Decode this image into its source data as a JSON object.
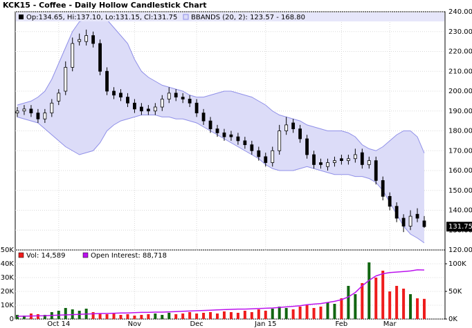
{
  "chart_data": [
    {
      "type": "candlestick",
      "title": "KCK15 - Coffee - Daily Hollow Candlestick Chart",
      "legend": [
        "Op:134.65, Hi:137.10, Lo:131.15, Cl:131.75",
        "BBANDS (20, 2): 123.57 - 168.80"
      ],
      "categories": [
        null,
        null,
        null,
        null,
        null,
        null,
        "Oct 14",
        null,
        null,
        null,
        null,
        null,
        null,
        null,
        null,
        null,
        null,
        "Nov",
        null,
        null,
        null,
        null,
        null,
        null,
        null,
        null,
        "Dec",
        null,
        null,
        null,
        null,
        null,
        null,
        null,
        null,
        null,
        "Jan 15",
        null,
        null,
        null,
        null,
        null,
        null,
        null,
        null,
        null,
        null,
        "Feb",
        null,
        null,
        null,
        null,
        null,
        null,
        "Mar",
        null,
        null,
        null,
        null,
        null
      ],
      "open": [
        189,
        190,
        191,
        189,
        186,
        189,
        195,
        200,
        212,
        225,
        225,
        228,
        224,
        210,
        200,
        199,
        197,
        194,
        192,
        191,
        190,
        192,
        196,
        199,
        197,
        196,
        194,
        189,
        185,
        181,
        179,
        178,
        177,
        175,
        173,
        170,
        167,
        164,
        170,
        180,
        184,
        181,
        176,
        168,
        164,
        162,
        164,
        166,
        165,
        166,
        169,
        163,
        165,
        155,
        147,
        142,
        136,
        132,
        138,
        134.65
      ],
      "high": [
        192,
        193,
        193,
        191,
        191,
        196,
        201,
        215,
        227,
        229,
        231,
        230,
        226,
        212,
        202,
        201,
        199,
        196,
        194,
        193,
        194,
        198,
        202,
        201,
        199,
        198,
        196,
        191,
        187,
        183,
        181,
        180,
        179,
        177,
        175,
        172,
        169,
        172,
        183,
        187,
        186,
        183,
        178,
        170,
        166,
        166,
        167,
        168,
        168,
        171,
        171,
        167,
        167,
        157,
        149,
        144,
        138,
        140,
        141,
        137.1
      ],
      "low": [
        187,
        188,
        187,
        184,
        184,
        187,
        193,
        198,
        210,
        223,
        223,
        222,
        208,
        198,
        196,
        195,
        192,
        189,
        188,
        188,
        188,
        190,
        194,
        195,
        194,
        192,
        187,
        183,
        179,
        177,
        175,
        175,
        173,
        171,
        168,
        165,
        162,
        162,
        168,
        178,
        179,
        174,
        166,
        161,
        161,
        160,
        162,
        163,
        163,
        164,
        161,
        161,
        153,
        145,
        140,
        134,
        129,
        130,
        134,
        131.15
      ],
      "close": [
        190,
        191,
        189,
        186,
        189,
        194,
        199,
        212,
        224,
        226,
        228,
        224,
        210,
        200,
        198,
        197,
        194,
        191,
        190,
        190,
        192,
        196,
        199,
        197,
        196,
        194,
        189,
        185,
        181,
        179,
        177,
        177,
        175,
        173,
        170,
        167,
        164,
        170,
        180,
        183,
        181,
        176,
        168,
        163,
        163,
        164,
        165,
        165,
        166,
        168,
        163,
        165,
        155,
        147,
        142,
        136,
        132,
        137,
        136,
        131.75
      ],
      "bands": {
        "color": "#8f8fe8",
        "fill": "#dcdcf8",
        "upper": [
          193,
          194,
          195,
          197,
          200,
          206,
          214,
          222,
          230,
          235,
          236,
          237,
          237,
          236,
          232,
          228,
          224,
          216,
          210,
          207,
          205,
          203,
          202,
          201,
          200,
          198,
          197,
          197,
          198,
          199,
          200,
          200,
          199,
          198,
          197,
          195,
          193,
          190,
          188,
          187,
          186,
          185,
          183,
          182,
          181,
          180,
          180,
          180,
          179,
          177,
          173,
          171,
          170,
          172,
          175,
          178,
          180,
          180,
          177,
          168.8
        ],
        "lower": [
          187,
          186,
          185,
          184,
          181,
          178,
          175,
          172,
          170,
          168,
          169,
          170,
          174,
          180,
          183,
          185,
          186,
          187,
          188,
          188,
          188,
          187,
          187,
          186,
          186,
          185,
          184,
          182,
          180,
          178,
          176,
          174,
          172,
          170,
          168,
          166,
          163,
          161,
          160,
          160,
          160,
          161,
          162,
          161,
          160,
          159,
          158,
          158,
          158,
          157,
          157,
          156,
          154,
          150,
          144,
          138,
          132,
          128,
          126,
          123.57
        ]
      },
      "last_price": 131.75,
      "ylim": [
        120,
        240
      ],
      "yticks": [
        {
          "value": 120,
          "label": "120.00"
        },
        {
          "value": 130,
          "label": "130.00"
        },
        {
          "value": 140,
          "label": "140.00"
        },
        {
          "value": 150,
          "label": "150.00"
        },
        {
          "value": 160,
          "label": "160.00"
        },
        {
          "value": 170,
          "label": "170.00"
        },
        {
          "value": 180,
          "label": "180.00"
        },
        {
          "value": 190,
          "label": "190.00"
        },
        {
          "value": 200,
          "label": "200.00"
        },
        {
          "value": 210,
          "label": "210.00"
        },
        {
          "value": 220,
          "label": "220.00"
        },
        {
          "value": 230,
          "label": "230.00"
        },
        {
          "value": 240,
          "label": "240.00"
        }
      ],
      "grid": true
    },
    {
      "type": "bar",
      "series": [
        {
          "name": "Vol: 14,589",
          "up_color": "#116611",
          "down_color": "#ee1c1c",
          "values": [
            3000,
            2500,
            4000,
            3500,
            3000,
            5000,
            6000,
            8000,
            7000,
            6000,
            7500,
            5000,
            4000,
            3500,
            4000,
            3000,
            3500,
            2500,
            3000,
            3500,
            4000,
            3000,
            4500,
            3500,
            4000,
            5000,
            4000,
            4500,
            5000,
            4000,
            5500,
            5000,
            4500,
            6000,
            5000,
            7000,
            6000,
            7500,
            9000,
            8000,
            7000,
            9000,
            10000,
            8000,
            9000,
            12000,
            11000,
            15000,
            24000,
            18000,
            26000,
            41000,
            30000,
            35000,
            20000,
            24000,
            22000,
            18000,
            15000,
            14589
          ]
        },
        {
          "name": "Open Interest: 88,718",
          "color": "#bb11ee",
          "axis": "y2",
          "values": [
            5000,
            5200,
            5500,
            5800,
            6000,
            6500,
            7000,
            7500,
            8000,
            8500,
            9000,
            9500,
            10000,
            10200,
            10500,
            11000,
            11000,
            11500,
            12000,
            12000,
            12500,
            12500,
            13000,
            13500,
            14000,
            14500,
            15000,
            15500,
            16000,
            16500,
            17000,
            17500,
            18000,
            18000,
            18500,
            19000,
            19500,
            20000,
            21000,
            22000,
            23000,
            24000,
            26000,
            27000,
            28000,
            30000,
            32000,
            35000,
            40000,
            48000,
            60000,
            70000,
            78000,
            82000,
            84000,
            85000,
            86000,
            87000,
            89000,
            88718
          ]
        }
      ],
      "ylim": [
        0,
        50000
      ],
      "yticks": [
        {
          "value": 0,
          "label": "0"
        },
        {
          "value": 10000,
          "label": "10K"
        },
        {
          "value": 20000,
          "label": "20K"
        },
        {
          "value": 30000,
          "label": "30K"
        },
        {
          "value": 40000,
          "label": "40K"
        },
        {
          "value": 50000,
          "label": "50K"
        }
      ],
      "y2lim": [
        0,
        125000
      ],
      "y2ticks": [
        {
          "value": 0,
          "label": "0K"
        },
        {
          "value": 50000,
          "label": "50K"
        },
        {
          "value": 100000,
          "label": "100K"
        }
      ],
      "grid": true
    }
  ]
}
